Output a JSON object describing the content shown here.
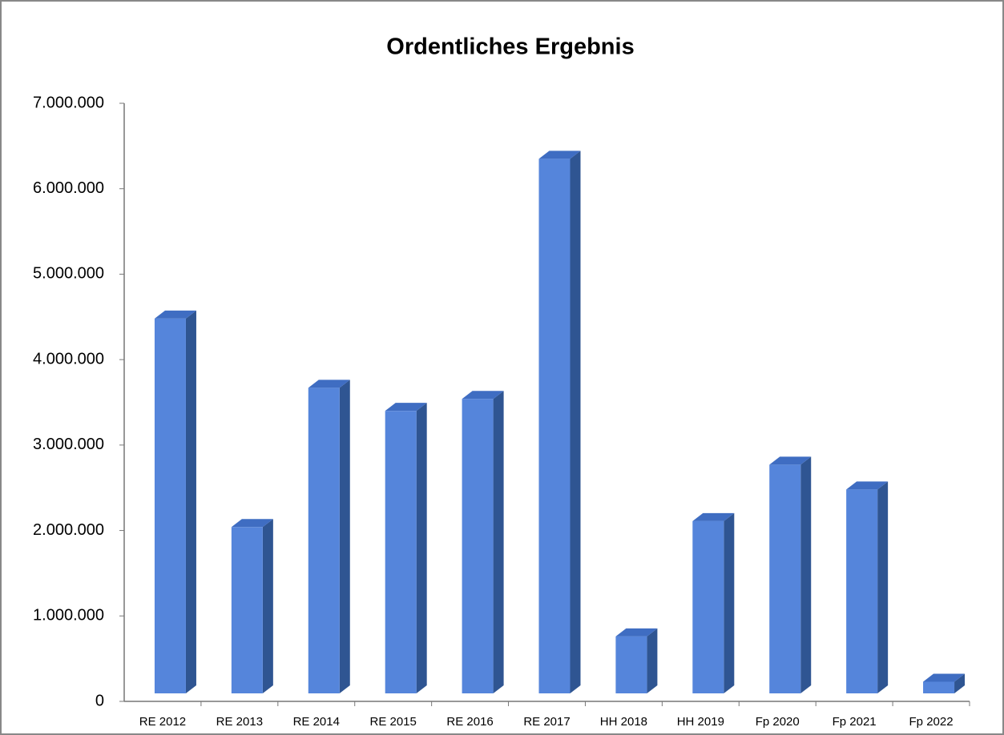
{
  "chart_data": {
    "type": "bar3d",
    "title": "Ordentliches Ergebnis",
    "categories": [
      "RE 2012",
      "RE 2013",
      "RE 2014",
      "RE 2015",
      "RE 2016",
      "RE 2017",
      "HH 2018",
      "HH 2019",
      "Fp 2020",
      "Fp 2021",
      "Fp 2022"
    ],
    "values": [
      4480000,
      2040000,
      3670000,
      3400000,
      3540000,
      6350000,
      760000,
      2110000,
      2770000,
      2480000,
      230000
    ],
    "color": "#5585db",
    "ylim": [
      0,
      7000000
    ],
    "yticks": [
      0,
      {
        "value": 1000000,
        "label": "1.000.000"
      },
      {
        "value": 2000000,
        "label": "2.000.000"
      },
      {
        "value": 3000000,
        "label": "3.000.000"
      },
      {
        "value": 4000000,
        "label": "4.000.000"
      },
      {
        "value": 5000000,
        "label": "5.000.000"
      },
      {
        "value": 6000000,
        "label": "6.000.000"
      },
      {
        "value": 7000000,
        "label": "7.000.000"
      }
    ],
    "grid": false
  }
}
